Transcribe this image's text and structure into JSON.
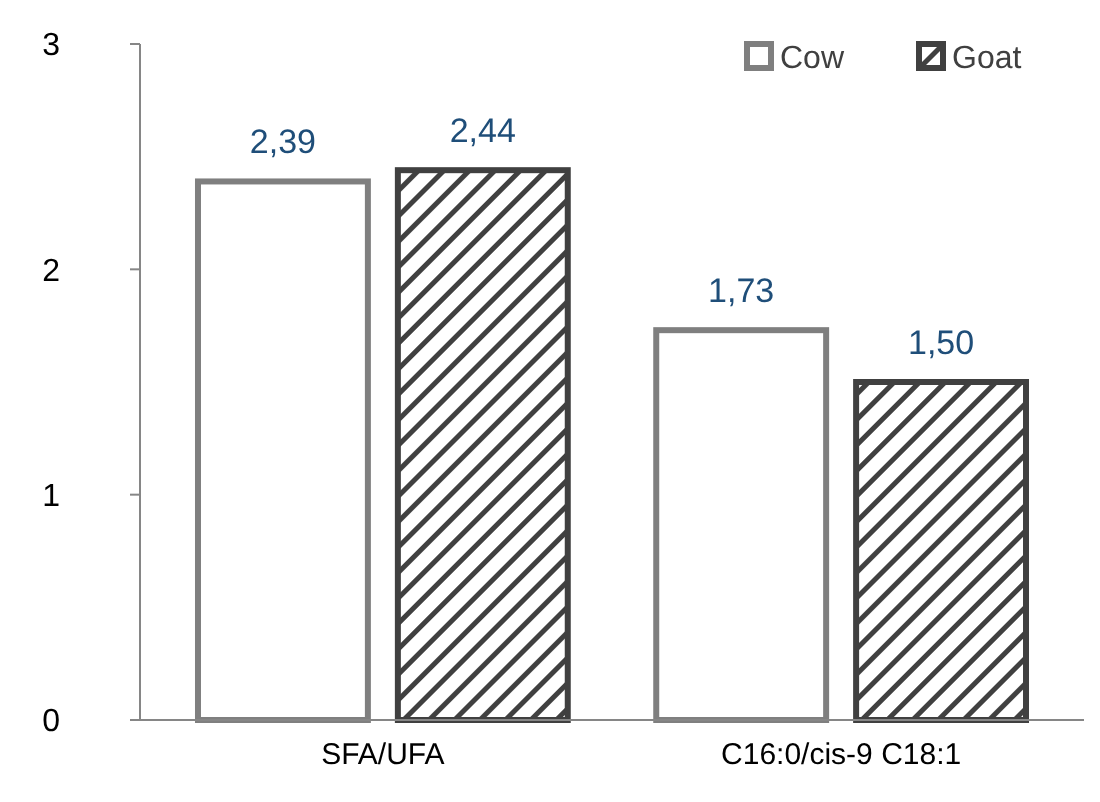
{
  "chart_data": {
    "type": "bar",
    "categories": [
      "SFA/UFA",
      "C16:0/cis-9 C18:1"
    ],
    "series": [
      {
        "name": "Cow",
        "color": "#7f7f7f",
        "values": [
          2.39,
          1.73
        ],
        "value_labels": [
          "2,39",
          "1,73"
        ]
      },
      {
        "name": "Goat",
        "color": "#404040",
        "values": [
          2.44,
          1.5
        ],
        "value_labels": [
          "2,44",
          "1,50"
        ]
      }
    ],
    "ylim": [
      0,
      3
    ],
    "yticks": [
      0,
      1,
      2,
      3
    ],
    "grid": false,
    "legend": "top right"
  }
}
